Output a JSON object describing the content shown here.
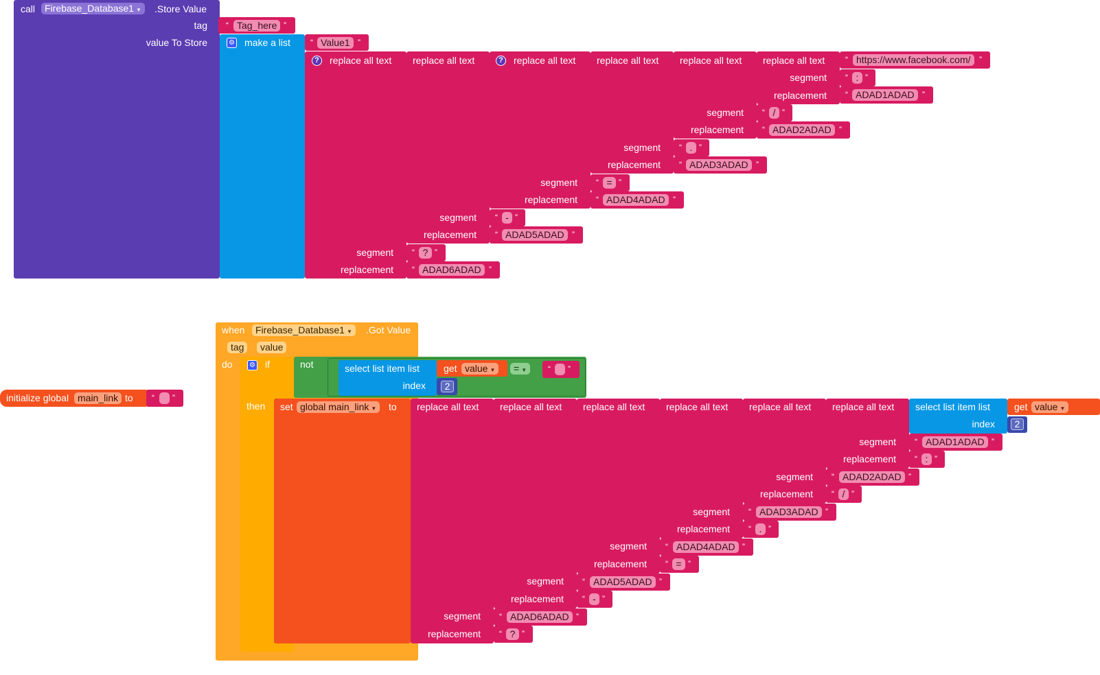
{
  "store": {
    "call_label": "call",
    "component": "Firebase_Database1",
    "method": ".Store Value",
    "tag_label": "tag",
    "tag_value": "Tag_here",
    "value_label": "value To Store",
    "make_list": "make a list",
    "item1": "Value1",
    "replace_label": "replace all text",
    "segment_label": "segment",
    "replacement_label": "replacement",
    "url": "https://www.facebook.com/",
    "seg1": ":",
    "rep1": "ADAD1ADAD",
    "seg2": "/",
    "rep2": "ADAD2ADAD",
    "seg3": ".",
    "rep3": "ADAD3ADAD",
    "seg4": "=",
    "rep4": "ADAD4ADAD",
    "seg5": "-",
    "rep5": "ADAD5ADAD",
    "seg6": "?",
    "rep6": "ADAD6ADAD"
  },
  "global": {
    "init_label": "initialize global",
    "name": "main_link",
    "to_label": "to"
  },
  "event": {
    "when_label": "when",
    "component": "Firebase_Database1",
    "event": ".Got Value",
    "param_tag": "tag",
    "param_value": "value",
    "do_label": "do",
    "if_label": "if",
    "then_label": "then",
    "not_label": "not",
    "select_label": "select list item  list",
    "index_label": "index",
    "get_label": "get",
    "get_var": "value",
    "eq_op": "=",
    "index_value": "2",
    "set_label": "set",
    "set_var": "global main_link",
    "set_to": "to",
    "replace_label": "replace all text",
    "segment_label": "segment",
    "replacement_label": "replacement",
    "seg_a": "ADAD1ADAD",
    "rep_a": ":",
    "seg_b": "ADAD2ADAD",
    "rep_b": "/",
    "seg_c": "ADAD3ADAD",
    "rep_c": ".",
    "seg_d": "ADAD4ADAD",
    "rep_d": "=",
    "seg_e": "ADAD5ADAD",
    "rep_e": "-",
    "seg_f": "ADAD6ADAD",
    "rep_f": "?"
  }
}
